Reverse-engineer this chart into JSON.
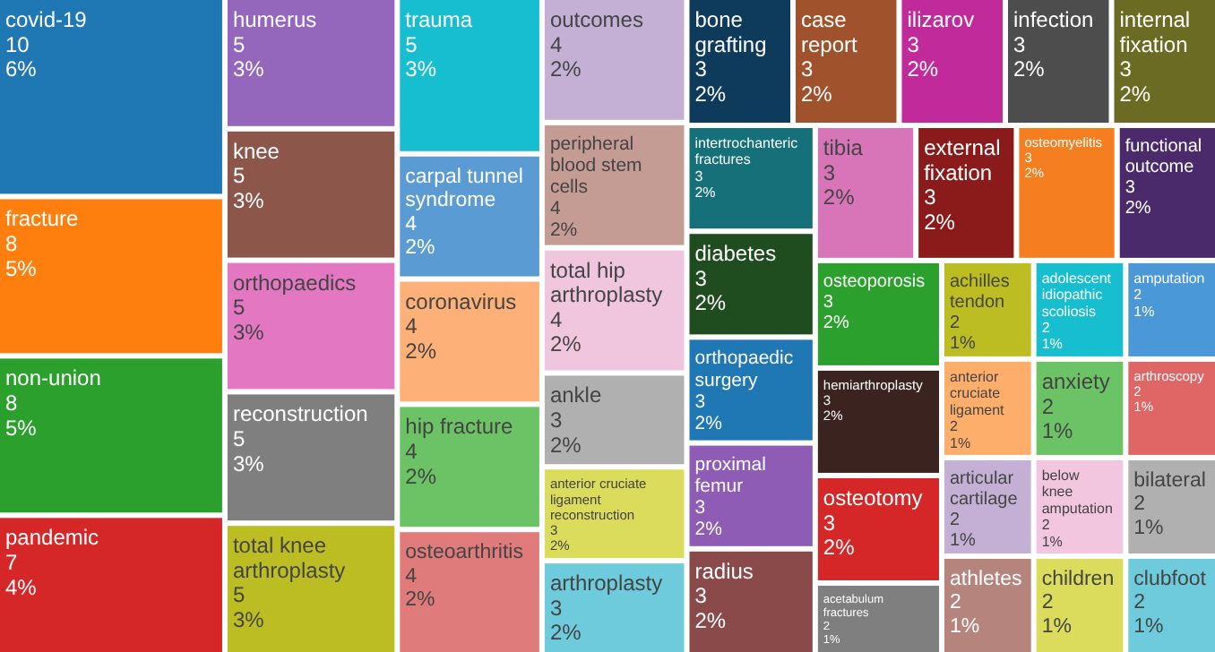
{
  "chart_data": {
    "type": "other",
    "categories": [
      "covid-19",
      "fracture",
      "non-union",
      "pandemic",
      "humerus",
      "knee",
      "orthopaedics",
      "reconstruction",
      "total knee arthroplasty",
      "trauma",
      "carpal tunnel syndrome",
      "coronavirus",
      "hip fracture",
      "osteoarthritis",
      "outcomes",
      "peripheral blood stem cells",
      "total hip arthroplasty",
      "ankle",
      "anterior cruciate ligament reconstruction",
      "arthroplasty",
      "bone grafting",
      "case report",
      "ilizarov",
      "infection",
      "internal fixation",
      "intertrochanteric fractures",
      "diabetes",
      "orthopaedic surgery",
      "proximal femur",
      "radius",
      "tibia",
      "external fixation",
      "osteomyelitis",
      "functional outcome",
      "osteoporosis",
      "hemiarthroplasty",
      "osteotomy",
      "acetabulum fractures",
      "achilles tendon",
      "adolescent idiopathic scoliosis",
      "amputation",
      "anterior cruciate ligament",
      "anxiety",
      "arthroscopy",
      "articular cartilage",
      "athletes",
      "below knee amputation",
      "bilateral",
      "children",
      "clubfoot"
    ],
    "series": [
      {
        "values": [
          10,
          8,
          8,
          7,
          5,
          5,
          5,
          5,
          5,
          5,
          4,
          4,
          4,
          4,
          4,
          4,
          4,
          3,
          3,
          3,
          3,
          3,
          3,
          3,
          3,
          3,
          3,
          3,
          3,
          3,
          3,
          3,
          3,
          3,
          3,
          3,
          3,
          2,
          2,
          2,
          2,
          2,
          2,
          2,
          2,
          2,
          2,
          2,
          2,
          2
        ],
        "colors": [
          "#1f77b4",
          "#ff7f0e",
          "#2ca02c",
          "#d62728",
          "#9467bd",
          "#8c564b",
          "#e377c2",
          "#7f7f7f",
          "#bcbd22",
          "#17becf",
          "#5a9bd4",
          "#fdb077",
          "#6cc365",
          "#e07b7b",
          "#c5b0d5",
          "#c49c94",
          "#f0c6de",
          "#b0b0b0",
          "#dbdb5c",
          "#6dcbdb",
          "#0e3b5c",
          "#a0522d",
          "#c02a9b",
          "#4d4d4d",
          "#6b6b24",
          "#16707a",
          "#1f4d1f",
          "#1f77b4",
          "#8e5bb5",
          "#8b4a4a",
          "#d875b8",
          "#8b1a1a",
          "#f57f20",
          "#4b2a6b",
          "#2ca02c",
          "#3b2420",
          "#d62728",
          "#7f7f7f",
          "#bcbd22",
          "#17becf",
          "#4a98d8",
          "#fdae6b",
          "#6cc365",
          "#e06666",
          "#c5b0d5",
          "#b5857d",
          "#f2c6de",
          "#b0b0b0",
          "#dbdb5c",
          "#6dcbdb"
        ]
      },
      {
        "values": [
          6,
          5,
          5,
          4,
          3,
          3,
          3,
          3,
          3,
          3,
          2,
          2,
          2,
          2,
          2,
          2,
          2,
          2,
          2,
          2,
          2,
          2,
          2,
          2,
          2,
          2,
          2,
          2,
          2,
          2,
          2,
          2,
          2,
          2,
          2,
          2,
          2,
          1,
          1,
          1,
          1,
          1,
          1,
          1,
          1,
          1,
          1,
          1,
          1,
          1
        ],
        "value_labels": [
          "6%",
          "5%",
          "5%",
          "4%",
          "3%",
          "3%",
          "3%",
          "3%",
          "3%",
          "3%",
          "2%",
          "2%",
          "2%",
          "2%",
          "2%",
          "2%",
          "2%",
          "2%",
          "2%",
          "2%",
          "2%",
          "2%",
          "2%",
          "2%",
          "2%",
          "2%",
          "2%",
          "2%",
          "2%",
          "2%",
          "2%",
          "2%",
          "2%",
          "2%",
          "2%",
          "2%",
          "2%",
          "1%",
          "1%",
          "1%",
          "1%",
          "1%",
          "1%",
          "1%",
          "1%",
          "1%",
          "1%",
          "1%",
          "1%",
          "1%"
        ]
      }
    ],
    "data_labels": true
  }
}
